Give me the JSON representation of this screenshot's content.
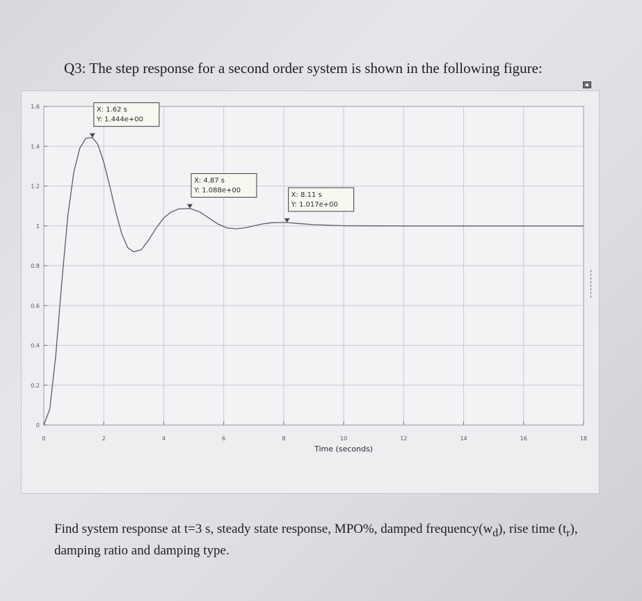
{
  "question": {
    "title": "Q3: The step response for a second order system is shown in the following figure:"
  },
  "task": {
    "text": "Find system response at t=3 s, steady state response, MPO%, damped frequency(w",
    "wd_subscript": "d",
    "text_after_wd": "), rise time (t",
    "tr_subscript": "r",
    "text_end": "), damping ratio and damping type."
  },
  "chart_data": {
    "type": "line",
    "xlabel": "Time (seconds)",
    "ylabel": "",
    "xlim": [
      0,
      18
    ],
    "ylim": [
      0,
      1.6
    ],
    "x_ticks": [
      "0",
      "2",
      "4",
      "6",
      "8",
      "10",
      "12",
      "14",
      "16",
      "18"
    ],
    "y_ticks": [
      "0",
      "0.2",
      "0.4",
      "0.6",
      "0.8",
      "1",
      "1.2",
      "1.4",
      "1.6"
    ],
    "grid": true,
    "series": [
      {
        "color": "#5a5a62",
        "x": [
          0,
          0.2,
          0.4,
          0.6,
          0.8,
          1.0,
          1.2,
          1.4,
          1.62,
          1.8,
          2.0,
          2.2,
          2.4,
          2.6,
          2.8,
          3.0,
          3.25,
          3.5,
          3.75,
          4.0,
          4.25,
          4.5,
          4.87,
          5.2,
          5.5,
          5.8,
          6.1,
          6.4,
          6.7,
          7.0,
          7.3,
          7.6,
          7.9,
          8.11,
          8.5,
          9.0,
          10.0,
          12.0,
          14.0,
          16.0,
          18.0
        ],
        "y": [
          0.0,
          0.08,
          0.35,
          0.72,
          1.05,
          1.27,
          1.39,
          1.44,
          1.444,
          1.41,
          1.32,
          1.2,
          1.07,
          0.96,
          0.89,
          0.87,
          0.88,
          0.93,
          0.99,
          1.04,
          1.07,
          1.085,
          1.088,
          1.07,
          1.04,
          1.01,
          0.99,
          0.985,
          0.99,
          1.0,
          1.01,
          1.016,
          1.017,
          1.017,
          1.012,
          1.006,
          1.001,
          1.0,
          1.0,
          1.0,
          1.0
        ]
      }
    ],
    "annotations": [
      {
        "x": 1.62,
        "y": 1.444,
        "line1": "X: 1.62 s",
        "line2": "Y: 1.444e+00"
      },
      {
        "x": 4.87,
        "y": 1.088,
        "line1": "X: 4.87 s",
        "line2": "Y: 1.088e+00"
      },
      {
        "x": 8.11,
        "y": 1.017,
        "line1": "X: 8.11 s",
        "line2": "Y: 1.017e+00"
      }
    ]
  }
}
